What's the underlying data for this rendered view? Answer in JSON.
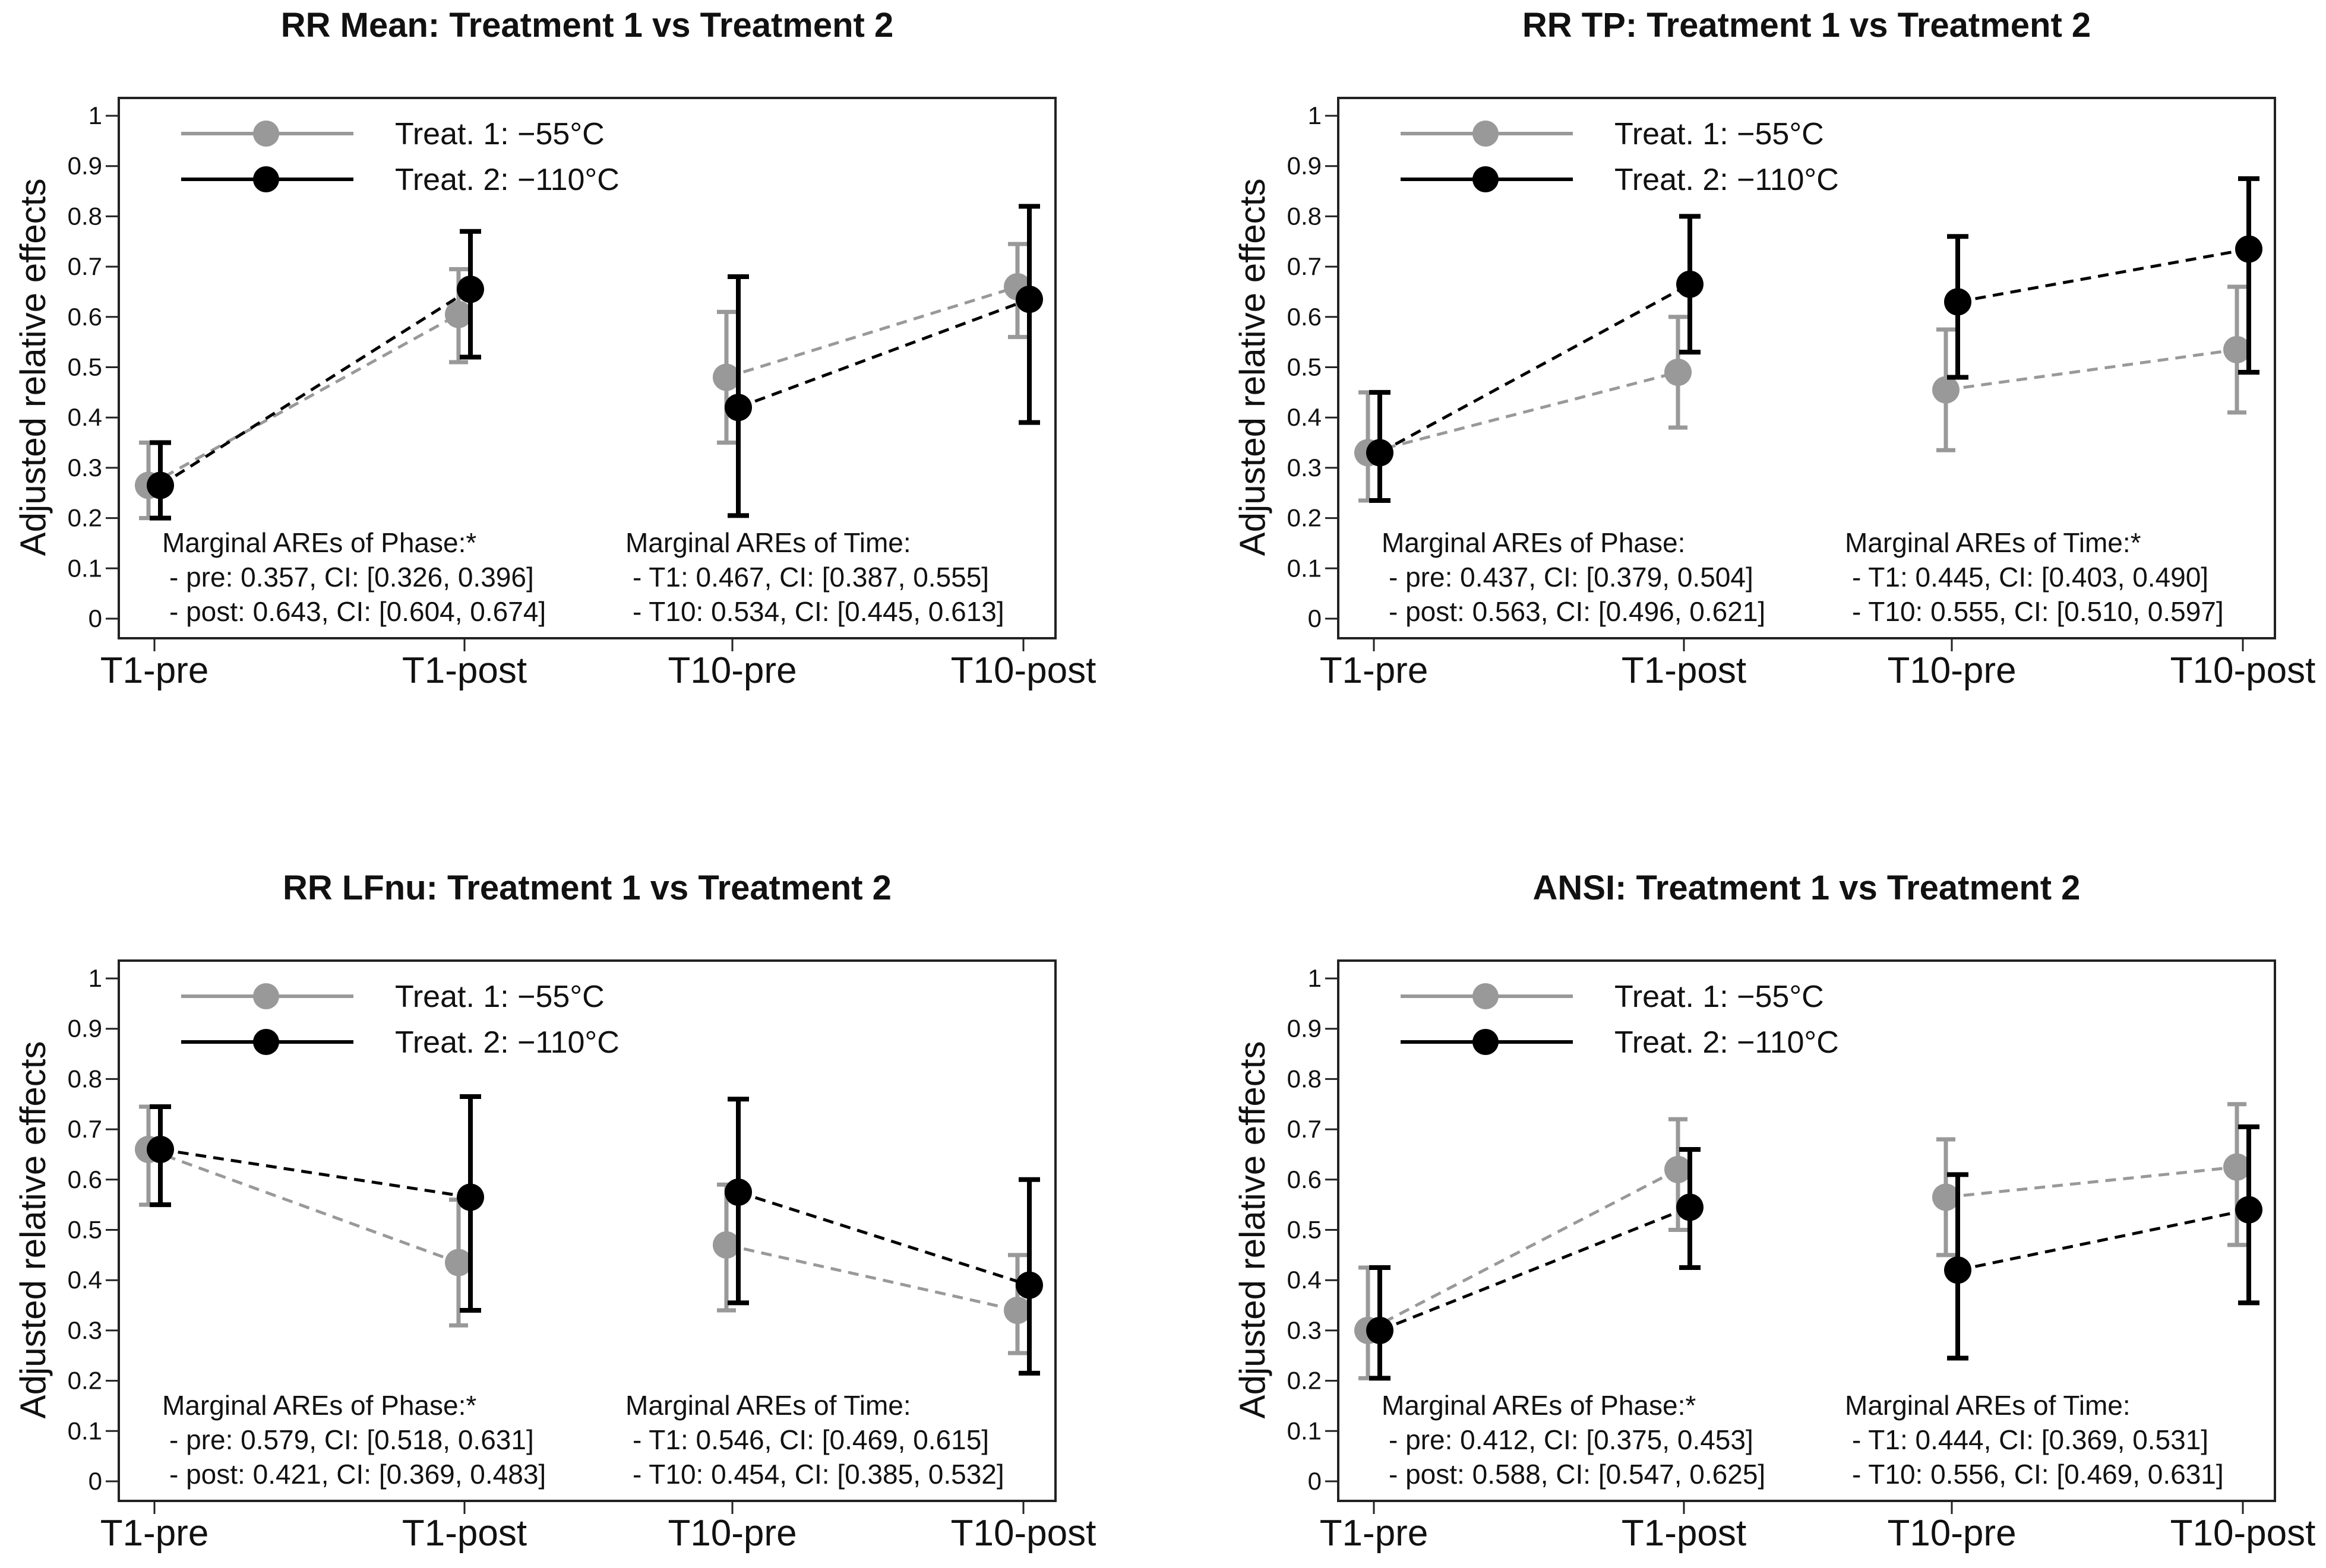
{
  "colors": {
    "treat1": "#999999",
    "treat2": "#000000"
  },
  "chart_data": [
    {
      "type": "line",
      "title": "RR Mean: Treatment 1 vs Treatment 2",
      "ylabel": "Adjusted relative effects",
      "ylim": [
        0,
        1
      ],
      "yticks": [
        "0",
        "0.1",
        "0.2",
        "0.3",
        "0.4",
        "0.5",
        "0.6",
        "0.7",
        "0.8",
        "0.9",
        "1"
      ],
      "categories": [
        "T1-pre",
        "T1-post",
        "T10-pre",
        "T10-post"
      ],
      "legend": [
        "Treat. 1: −55°C",
        "Treat. 2: −110°C"
      ],
      "series": [
        {
          "name": "Treat. 1: −55°C",
          "values": [
            0.265,
            0.605,
            0.48,
            0.66
          ],
          "lower": [
            0.2,
            0.51,
            0.35,
            0.56
          ],
          "upper": [
            0.35,
            0.695,
            0.61,
            0.745
          ]
        },
        {
          "name": "Treat. 2: −110°C",
          "values": [
            0.265,
            0.655,
            0.42,
            0.635
          ],
          "lower": [
            0.2,
            0.52,
            0.205,
            0.39
          ],
          "upper": [
            0.35,
            0.77,
            0.68,
            0.82
          ]
        }
      ],
      "annotations": [
        {
          "heading": "Marginal AREs of Phase:*",
          "lines": [
            "- pre: 0.357, CI: [0.326, 0.396]",
            "- post: 0.643, CI: [0.604, 0.674]"
          ]
        },
        {
          "heading": "Marginal AREs of Time:",
          "lines": [
            "- T1: 0.467, CI: [0.387, 0.555]",
            "- T10: 0.534, CI: [0.445, 0.613]"
          ]
        }
      ]
    },
    {
      "type": "line",
      "title": "RR TP: Treatment 1 vs Treatment 2",
      "ylabel": "Adjusted relative effects",
      "ylim": [
        0,
        1
      ],
      "yticks": [
        "0",
        "0.1",
        "0.2",
        "0.3",
        "0.4",
        "0.5",
        "0.6",
        "0.7",
        "0.8",
        "0.9",
        "1"
      ],
      "categories": [
        "T1-pre",
        "T1-post",
        "T10-pre",
        "T10-post"
      ],
      "legend": [
        "Treat. 1: −55°C",
        "Treat. 2: −110°C"
      ],
      "series": [
        {
          "name": "Treat. 1: −55°C",
          "values": [
            0.33,
            0.49,
            0.455,
            0.535
          ],
          "lower": [
            0.235,
            0.38,
            0.335,
            0.41
          ],
          "upper": [
            0.45,
            0.6,
            0.575,
            0.66
          ]
        },
        {
          "name": "Treat. 2: −110°C",
          "values": [
            0.33,
            0.665,
            0.63,
            0.735
          ],
          "lower": [
            0.235,
            0.53,
            0.48,
            0.49
          ],
          "upper": [
            0.45,
            0.8,
            0.76,
            0.875
          ]
        }
      ],
      "annotations": [
        {
          "heading": "Marginal AREs of Phase:",
          "lines": [
            "- pre: 0.437, CI: [0.379, 0.504]",
            "- post: 0.563, CI: [0.496, 0.621]"
          ]
        },
        {
          "heading": "Marginal AREs of Time:*",
          "lines": [
            "- T1: 0.445, CI: [0.403, 0.490]",
            "- T10: 0.555, CI: [0.510, 0.597]"
          ]
        }
      ]
    },
    {
      "type": "line",
      "title": "RR LFnu: Treatment 1 vs Treatment 2",
      "ylabel": "Adjusted relative effects",
      "ylim": [
        0,
        1
      ],
      "yticks": [
        "0",
        "0.1",
        "0.2",
        "0.3",
        "0.4",
        "0.5",
        "0.6",
        "0.7",
        "0.8",
        "0.9",
        "1"
      ],
      "categories": [
        "T1-pre",
        "T1-post",
        "T10-pre",
        "T10-post"
      ],
      "legend": [
        "Treat. 1: −55°C",
        "Treat. 2: −110°C"
      ],
      "series": [
        {
          "name": "Treat. 1: −55°C",
          "values": [
            0.66,
            0.435,
            0.47,
            0.34
          ],
          "lower": [
            0.55,
            0.31,
            0.34,
            0.255
          ],
          "upper": [
            0.745,
            0.56,
            0.59,
            0.45
          ]
        },
        {
          "name": "Treat. 2: −110°C",
          "values": [
            0.66,
            0.565,
            0.575,
            0.39
          ],
          "lower": [
            0.55,
            0.34,
            0.355,
            0.215
          ],
          "upper": [
            0.745,
            0.765,
            0.76,
            0.6
          ]
        }
      ],
      "annotations": [
        {
          "heading": "Marginal AREs of Phase:*",
          "lines": [
            "- pre: 0.579, CI: [0.518, 0.631]",
            "- post: 0.421, CI: [0.369, 0.483]"
          ]
        },
        {
          "heading": "Marginal AREs of Time:",
          "lines": [
            "- T1: 0.546, CI: [0.469, 0.615]",
            "- T10: 0.454, CI: [0.385, 0.532]"
          ]
        }
      ]
    },
    {
      "type": "line",
      "title": "ANSI: Treatment 1 vs Treatment 2",
      "ylabel": "Adjusted relative effects",
      "ylim": [
        0,
        1
      ],
      "yticks": [
        "0",
        "0.1",
        "0.2",
        "0.3",
        "0.4",
        "0.5",
        "0.6",
        "0.7",
        "0.8",
        "0.9",
        "1"
      ],
      "categories": [
        "T1-pre",
        "T1-post",
        "T10-pre",
        "T10-post"
      ],
      "legend": [
        "Treat. 1: −55°C",
        "Treat. 2: −110°C"
      ],
      "series": [
        {
          "name": "Treat. 1: −55°C",
          "values": [
            0.3,
            0.62,
            0.565,
            0.625
          ],
          "lower": [
            0.205,
            0.5,
            0.45,
            0.47
          ],
          "upper": [
            0.425,
            0.72,
            0.68,
            0.75
          ]
        },
        {
          "name": "Treat. 2: −110°C",
          "values": [
            0.3,
            0.545,
            0.42,
            0.54
          ],
          "lower": [
            0.205,
            0.425,
            0.245,
            0.355
          ],
          "upper": [
            0.425,
            0.66,
            0.61,
            0.705
          ]
        }
      ],
      "annotations": [
        {
          "heading": "Marginal AREs of Phase:*",
          "lines": [
            "- pre: 0.412, CI: [0.375, 0.453]",
            "- post: 0.588, CI: [0.547, 0.625]"
          ]
        },
        {
          "heading": "Marginal AREs of Time:",
          "lines": [
            "- T1: 0.444, CI: [0.369, 0.531]",
            "- T10: 0.556, CI: [0.469, 0.631]"
          ]
        }
      ]
    }
  ]
}
